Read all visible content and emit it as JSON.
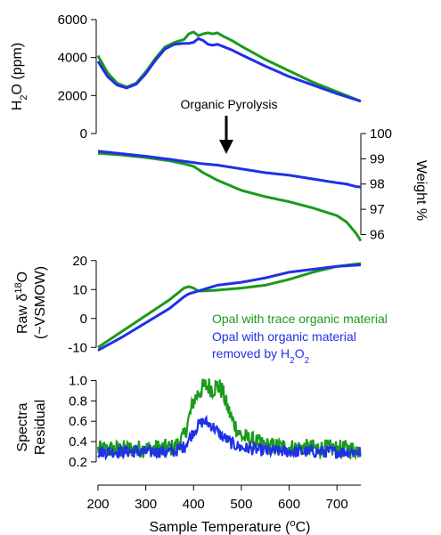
{
  "colors": {
    "green": "#1b9a1b",
    "blue": "#2030e8",
    "axis": "#000000"
  },
  "legend": [
    {
      "label": "Opal with trace organic material",
      "color": "#1b9a1b"
    },
    {
      "label_prefix": "Opal with organic material",
      "label_line2_prefix": "removed by H",
      "label_sub": "2",
      "label_line2_suffix": "O",
      "label_sub2": "2",
      "color": "#2030e8"
    }
  ],
  "annotation": {
    "text": "Organic Pyrolysis",
    "arrow_x": 455
  },
  "x_axis": {
    "label_prefix": "Sample Temperature (",
    "label_sup": "o",
    "label_suffix": "C)",
    "range": [
      200,
      750
    ],
    "ticks": [
      200,
      300,
      400,
      500,
      600,
      700
    ]
  },
  "chart_data": [
    {
      "type": "line",
      "panel": "water",
      "ylabel": {
        "prefix": "H",
        "sub": "2",
        "suffix": "O (ppm)"
      },
      "ylim": [
        0,
        6000
      ],
      "yticks": [
        0,
        2000,
        4000,
        6000
      ],
      "y_axis_side": "left",
      "x": [
        200,
        220,
        240,
        260,
        280,
        300,
        320,
        340,
        360,
        380,
        390,
        400,
        410,
        420,
        430,
        440,
        450,
        460,
        480,
        500,
        550,
        600,
        650,
        700,
        750
      ],
      "series": [
        {
          "color_key": "green",
          "values": [
            4100,
            3200,
            2650,
            2450,
            2650,
            3250,
            3950,
            4550,
            4800,
            4950,
            5250,
            5350,
            5150,
            5250,
            5300,
            5250,
            5300,
            5150,
            4900,
            4600,
            3900,
            3300,
            2700,
            2200,
            1700
          ]
        },
        {
          "color_key": "blue",
          "values": [
            3800,
            3000,
            2550,
            2400,
            2600,
            3150,
            3850,
            4450,
            4700,
            4750,
            4750,
            4800,
            5000,
            4900,
            4700,
            4650,
            4700,
            4600,
            4400,
            4150,
            3550,
            3000,
            2550,
            2100,
            1700
          ]
        }
      ]
    },
    {
      "type": "line",
      "panel": "weight",
      "ylabel": {
        "text": "Weight %"
      },
      "ylim": [
        95.7,
        100
      ],
      "yticks": [
        96,
        97,
        98,
        99,
        100
      ],
      "y_axis_side": "right",
      "x": [
        200,
        250,
        300,
        350,
        380,
        400,
        420,
        450,
        500,
        550,
        600,
        650,
        700,
        720,
        740,
        750
      ],
      "series": [
        {
          "color_key": "green",
          "values": [
            99.22,
            99.15,
            99.05,
            98.92,
            98.8,
            98.7,
            98.45,
            98.15,
            97.75,
            97.5,
            97.3,
            97.05,
            96.75,
            96.5,
            96.05,
            95.75
          ]
        },
        {
          "color_key": "blue",
          "values": [
            99.3,
            99.2,
            99.1,
            98.98,
            98.9,
            98.85,
            98.8,
            98.75,
            98.6,
            98.45,
            98.35,
            98.2,
            98.05,
            98.0,
            97.9,
            97.88
          ]
        }
      ]
    },
    {
      "type": "line",
      "panel": "delta18O",
      "ylabel": {
        "line1_prefix": "Raw ",
        "delta": "δ",
        "sup": "18",
        "line1_suffix": "O",
        "line2": "(~VSMOW)"
      },
      "ylim": [
        -13,
        23
      ],
      "yticks": [
        -10,
        0,
        10,
        20
      ],
      "y_axis_side": "left",
      "x": [
        200,
        250,
        300,
        350,
        380,
        390,
        400,
        410,
        420,
        450,
        500,
        550,
        600,
        650,
        700,
        750
      ],
      "series": [
        {
          "color_key": "green",
          "values": [
            -10,
            -4.5,
            1,
            6.5,
            10.5,
            11,
            10.5,
            9.5,
            9.5,
            9.8,
            10.5,
            11.5,
            13.5,
            16,
            18,
            19
          ]
        },
        {
          "color_key": "blue",
          "values": [
            -11,
            -6.5,
            -1.5,
            3.5,
            7.5,
            8.5,
            9,
            9.5,
            10,
            11.5,
            12.5,
            14,
            16,
            17,
            18,
            18.5
          ]
        }
      ]
    },
    {
      "type": "line",
      "panel": "residual",
      "ylabel": {
        "line1": "Spectra",
        "line2": "Residual"
      },
      "ylim": [
        0.12,
        1.18
      ],
      "yticks": [
        0.2,
        0.4,
        0.6,
        0.8,
        1.0
      ],
      "ytick_labels": [
        "0.2",
        "0.4",
        "0.6",
        "0.8",
        "1.0"
      ],
      "y_axis_side": "left",
      "x": [
        200,
        300,
        360,
        380,
        390,
        400,
        410,
        420,
        430,
        440,
        450,
        460,
        470,
        480,
        500,
        550,
        600,
        700,
        750
      ],
      "series": [
        {
          "color_key": "green",
          "values": [
            0.32,
            0.33,
            0.34,
            0.45,
            0.62,
            0.8,
            0.88,
            0.93,
            0.95,
            0.92,
            0.95,
            0.9,
            0.75,
            0.62,
            0.45,
            0.36,
            0.34,
            0.33,
            0.32
          ],
          "noise": 0.09
        },
        {
          "color_key": "blue",
          "values": [
            0.3,
            0.3,
            0.3,
            0.35,
            0.42,
            0.5,
            0.56,
            0.6,
            0.58,
            0.55,
            0.5,
            0.45,
            0.42,
            0.38,
            0.34,
            0.31,
            0.3,
            0.3,
            0.3
          ],
          "noise": 0.06
        }
      ]
    }
  ]
}
